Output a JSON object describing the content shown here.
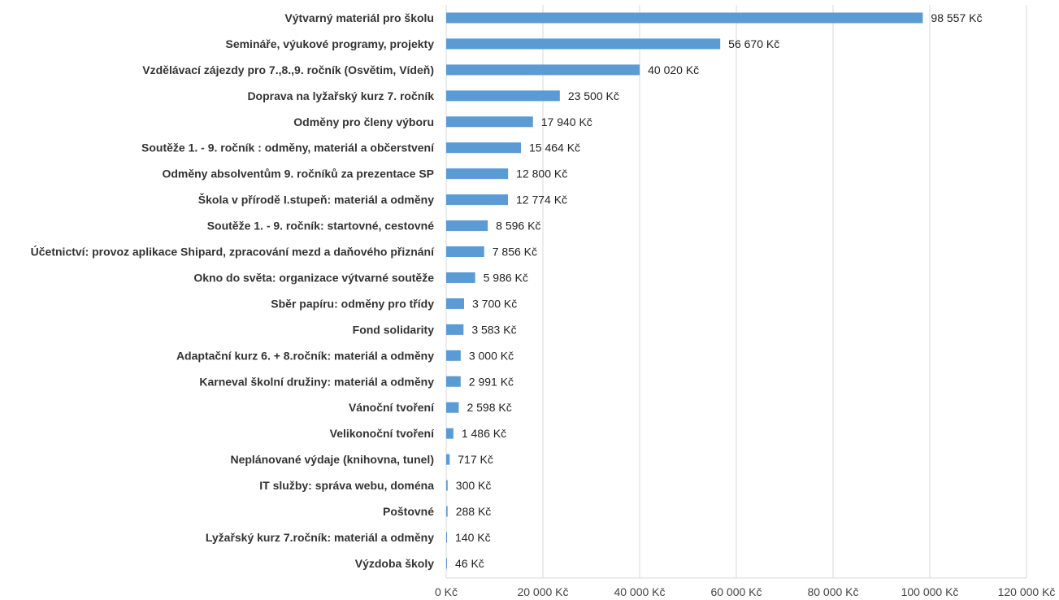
{
  "chart_data": {
    "type": "bar",
    "orientation": "horizontal",
    "categories": [
      "Výtvarný materiál pro školu",
      "Semináře, výukové programy, projekty",
      "Vzdělávací zájezdy pro 7.,8.,9. ročník (Osvětim, Vídeň)",
      "Doprava na lyžařský kurz 7. ročník",
      "Odměny pro členy výboru",
      "Soutěže 1. - 9. ročník : odměny, materiál a občerstvení",
      "Odměny absolventům 9. ročníků za  prezentace SP",
      "Škola v přírodě I.stupeň: materiál a odměny",
      "Soutěže 1. - 9. ročník: startovné, cestovné",
      "Účetnictví: provoz aplikace Shipard, zpracování mezd a daňového přiznání",
      "Okno do světa: organizace  výtvarné soutěže",
      "Sběr papíru: odměny pro třídy",
      "Fond solidarity",
      "Adaptační kurz 6. + 8.ročník: materiál a odměny",
      "Karneval školní družiny: materiál a odměny",
      "Vánoční tvoření",
      "Velikonoční tvoření",
      "Neplánované výdaje (knihovna, tunel)",
      "IT služby: správa webu, doména",
      "Poštovné",
      "Lyžařský kurz 7.ročník: materiál a odměny",
      "Výzdoba školy"
    ],
    "values": [
      98557,
      56670,
      40020,
      23500,
      17940,
      15464,
      12800,
      12774,
      8596,
      7856,
      5986,
      3700,
      3583,
      3000,
      2991,
      2598,
      1486,
      717,
      300,
      288,
      140,
      46
    ],
    "value_labels": [
      "98 557 Kč",
      "56 670 Kč",
      "40 020 Kč",
      "23 500 Kč",
      "17 940 Kč",
      "15 464 Kč",
      "12 800 Kč",
      "12 774 Kč",
      "8 596 Kč",
      "7 856 Kč",
      "5 986 Kč",
      "3 700 Kč",
      "3 583 Kč",
      "3 000 Kč",
      "2 991 Kč",
      "2 598 Kč",
      "1 486 Kč",
      "717 Kč",
      "300 Kč",
      "288 Kč",
      "140 Kč",
      "46 Kč"
    ],
    "xlim": [
      0,
      120000
    ],
    "x_ticks": [
      0,
      20000,
      40000,
      60000,
      80000,
      100000,
      120000
    ],
    "x_tick_labels": [
      "0 Kč",
      "20 000 Kč",
      "40 000 Kč",
      "60 000 Kč",
      "80 000 Kč",
      "100 000 Kč",
      "120 000 Kč"
    ],
    "title": "",
    "xlabel": "",
    "ylabel": "",
    "grid": "vertical",
    "legend": "none",
    "colors": {
      "bar": "#5b9bd5",
      "grid": "#d9d9d9",
      "text": "#333333"
    }
  }
}
